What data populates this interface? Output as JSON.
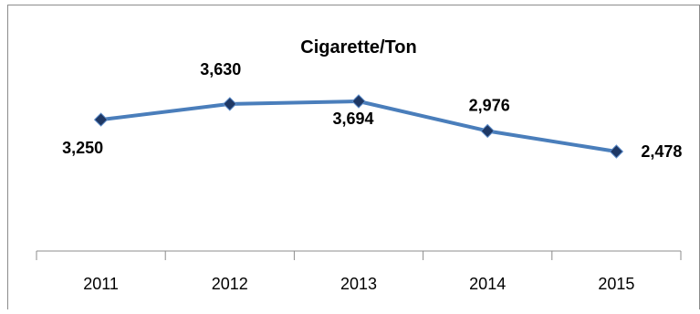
{
  "chart_data": {
    "type": "line",
    "title": "Cigarette/Ton",
    "categories": [
      "2011",
      "2012",
      "2013",
      "2014",
      "2015"
    ],
    "series": [
      {
        "values": [
          3250,
          3630,
          3694,
          2976,
          2478
        ],
        "labels": [
          "3,250",
          "3,630",
          "3,694",
          "2,976",
          "2,478"
        ]
      }
    ],
    "xlabel": "",
    "ylabel": "",
    "grid": false,
    "legend": "none",
    "line_color": "#4a7ebb",
    "marker_color": "#1f3864",
    "marker": "diamond"
  }
}
